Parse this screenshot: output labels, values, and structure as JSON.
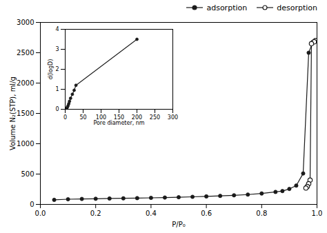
{
  "chart_data": [
    {
      "type": "line",
      "xlabel": "P/P₀",
      "ylabel": "Volume N₂(STP), ml/g",
      "series": [
        {
          "name": "adsorption",
          "color": "#1a1a1a",
          "marker": "circle",
          "x": [
            0.05,
            0.1,
            0.15,
            0.2,
            0.25,
            0.3,
            0.35,
            0.4,
            0.45,
            0.5,
            0.55,
            0.6,
            0.65,
            0.7,
            0.75,
            0.8,
            0.85,
            0.875,
            0.9,
            0.925,
            0.95,
            0.97,
            0.985,
            0.995
          ],
          "values": [
            75,
            85,
            90,
            93,
            97,
            100,
            103,
            108,
            113,
            118,
            125,
            132,
            140,
            150,
            162,
            180,
            205,
            220,
            255,
            310,
            510,
            2500,
            2680,
            2700
          ]
        },
        {
          "name": "desorption",
          "color": "#1a1a1a",
          "marker": "open_circle",
          "x": [
            0.995,
            0.99,
            0.98,
            0.975,
            0.97,
            0.965,
            0.96
          ],
          "values": [
            2700,
            2680,
            2650,
            400,
            340,
            295,
            270
          ]
        }
      ],
      "xlim": [
        0.0,
        1.0
      ],
      "ylim": [
        0,
        3000
      ],
      "xticks": [
        {
          "value": 0,
          "label": "0.0"
        },
        0.2,
        0.4,
        0.6,
        0.8,
        {
          "value": 1,
          "label": "1.0"
        }
      ],
      "yticks": [
        0,
        500,
        1000,
        1500,
        2000,
        2500,
        3000
      ],
      "legend": "upper right",
      "grid": false
    },
    {
      "type": "line",
      "xlabel": "Pore diameter, nm",
      "ylabel": "d(logD)",
      "x": [
        2,
        4,
        6,
        8,
        10,
        12,
        15,
        20,
        25,
        30,
        200
      ],
      "values": [
        0.02,
        0.05,
        0.1,
        0.18,
        0.28,
        0.4,
        0.55,
        0.75,
        0.95,
        1.2,
        3.5
      ],
      "color": "#1a1a1a",
      "marker": "circle",
      "xlim": [
        0,
        300
      ],
      "ylim": [
        0,
        4
      ],
      "xticks": [
        0,
        50,
        100,
        150,
        200,
        250,
        300
      ],
      "yticks": [
        0,
        1,
        2,
        3,
        4
      ],
      "grid": false
    }
  ]
}
